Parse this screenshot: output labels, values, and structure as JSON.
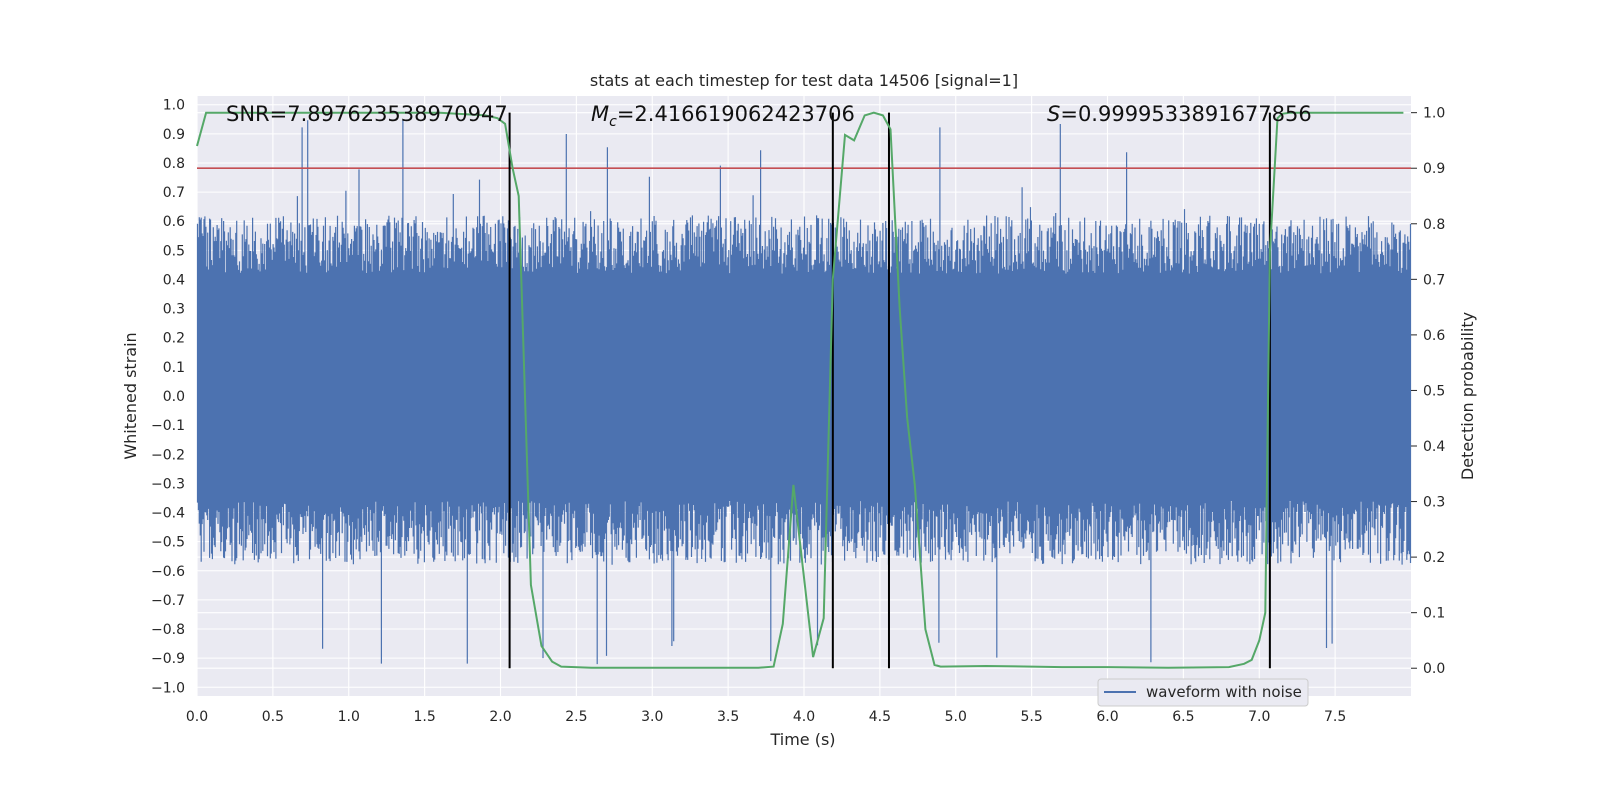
{
  "chart_data": {
    "type": "line",
    "title": "stats at each timestep for test data 14506 [signal=1]",
    "xlabel": "Time (s)",
    "ylabel": "Whitened strain",
    "y2label": "Detection probability",
    "xlim": [
      0.0,
      8.0
    ],
    "ylim": [
      -1.03,
      1.03
    ],
    "y2lim": [
      -0.05,
      1.03
    ],
    "xticks": [
      0.0,
      0.5,
      1.0,
      1.5,
      2.0,
      2.5,
      3.0,
      3.5,
      4.0,
      4.5,
      5.0,
      5.5,
      6.0,
      6.5,
      7.0,
      7.5
    ],
    "xtick_labels": [
      "0.0",
      "0.5",
      "1.0",
      "1.5",
      "2.0",
      "2.5",
      "3.0",
      "3.5",
      "4.0",
      "4.5",
      "5.0",
      "5.5",
      "6.0",
      "6.5",
      "7.0",
      "7.5"
    ],
    "yticks": [
      -1.0,
      -0.9,
      -0.8,
      -0.7,
      -0.6,
      -0.5,
      -0.4,
      -0.3,
      -0.2,
      -0.1,
      0.0,
      0.1,
      0.2,
      0.3,
      0.4,
      0.5,
      0.6,
      0.7,
      0.8,
      0.9,
      1.0
    ],
    "ytick_labels": [
      "−1.0",
      "−0.9",
      "−0.8",
      "−0.7",
      "−0.6",
      "−0.5",
      "−0.4",
      "−0.3",
      "−0.2",
      "−0.1",
      "0.0",
      "0.1",
      "0.2",
      "0.3",
      "0.4",
      "0.5",
      "0.6",
      "0.7",
      "0.8",
      "0.9",
      "1.0"
    ],
    "y2ticks": [
      0.0,
      0.1,
      0.2,
      0.3,
      0.4,
      0.5,
      0.6,
      0.7,
      0.8,
      0.9,
      1.0
    ],
    "y2tick_labels": [
      "0.0",
      "0.1",
      "0.2",
      "0.3",
      "0.4",
      "0.5",
      "0.6",
      "0.7",
      "0.8",
      "0.9",
      "1.0"
    ],
    "annotations": {
      "snr": "SNR=7.897623538970947",
      "mc_symbol": "M",
      "mc_subscript": "c",
      "mc_value": "=2.416619062423706",
      "s_symbol": "S",
      "s_value": "=0.9999533891677856"
    },
    "threshold": {
      "name": "detection threshold",
      "y2_value": 0.9,
      "color": "#c44e52"
    },
    "event_markers": {
      "x": [
        2.06,
        4.19,
        4.56,
        7.07
      ],
      "color": "#000000"
    },
    "series": [
      {
        "name": "waveform with noise",
        "axis": "left",
        "color": "#4c72b0",
        "kind": "noise-band",
        "x_range": [
          0.0,
          8.0
        ],
        "core_band": [
          -0.36,
          0.42
        ],
        "typical_peak": 0.62,
        "peak_max": 0.99,
        "trough_min": -0.93
      },
      {
        "name": "detection probability",
        "axis": "right",
        "color": "#55a868",
        "x": [
          0.0,
          0.06,
          0.15,
          0.3,
          0.5,
          0.8,
          1.0,
          1.3,
          1.6,
          1.9,
          1.98,
          2.03,
          2.08,
          2.12,
          2.16,
          2.2,
          2.27,
          2.34,
          2.4,
          2.6,
          3.0,
          3.4,
          3.7,
          3.8,
          3.86,
          3.93,
          4.06,
          4.13,
          4.19,
          4.27,
          4.33,
          4.4,
          4.46,
          4.52,
          4.57,
          4.63,
          4.68,
          4.73,
          4.8,
          4.86,
          4.9,
          5.2,
          5.5,
          5.7,
          6.0,
          6.4,
          6.8,
          6.9,
          6.95,
          7.0,
          7.04,
          7.07,
          7.12,
          7.15,
          7.2,
          7.5,
          7.75,
          7.95
        ],
        "y": [
          0.94,
          1.0,
          1.0,
          1.0,
          1.0,
          1.0,
          1.0,
          1.0,
          1.0,
          0.995,
          0.99,
          0.98,
          0.9,
          0.85,
          0.5,
          0.15,
          0.04,
          0.012,
          0.003,
          0.001,
          0.001,
          0.001,
          0.001,
          0.003,
          0.08,
          0.33,
          0.02,
          0.09,
          0.7,
          0.96,
          0.95,
          0.995,
          1.0,
          0.995,
          0.97,
          0.65,
          0.45,
          0.33,
          0.07,
          0.006,
          0.003,
          0.004,
          0.003,
          0.002,
          0.002,
          0.001,
          0.002,
          0.008,
          0.015,
          0.05,
          0.1,
          0.75,
          0.99,
          0.998,
          1.0,
          1.0,
          1.0,
          1.0
        ]
      }
    ],
    "legend": {
      "entries": [
        "waveform with noise"
      ],
      "placement": "lower-right"
    }
  }
}
